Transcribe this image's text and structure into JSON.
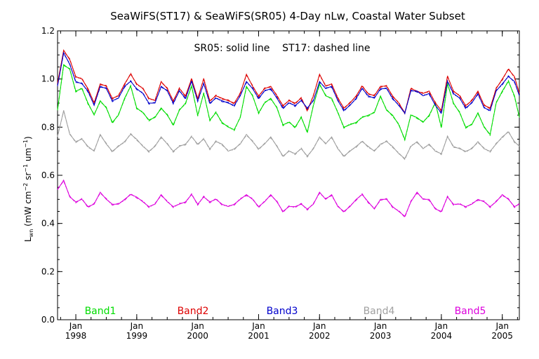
{
  "chart_data": {
    "type": "line",
    "title": "SeaWiFS(ST17) & SeaWiFS(SR05) 4-Day nLw, Coastal Water Subset",
    "annotation": "SR05: solid line    ST17: dashed line",
    "ylabel_main": "L",
    "ylabel_sub": "wn",
    "ylabel_units": "(mW cm",
    "ylabel_units_tail": "sr",
    "ylabel_units_end": "um",
    "ylabel_sup1": "−2",
    "ylabel_sup2": "−1",
    "ylabel_sup3": "−1",
    "xlabel": "",
    "ylim": [
      0.0,
      1.2
    ],
    "xlim": [
      1997.7,
      2005.28
    ],
    "yticks": [
      "0.0",
      "0.2",
      "0.4",
      "0.6",
      "0.8",
      "1.0",
      "1.2"
    ],
    "xticks": [
      {
        "month": "Jan",
        "year": "1998"
      },
      {
        "month": "Jan",
        "year": "1999"
      },
      {
        "month": "Jan",
        "year": "2000"
      },
      {
        "month": "Jan",
        "year": "2001"
      },
      {
        "month": "Jan",
        "year": "2002"
      },
      {
        "month": "Jan",
        "year": "2003"
      },
      {
        "month": "Jan",
        "year": "2004"
      },
      {
        "month": "Jan",
        "year": "2005"
      }
    ],
    "grid": false,
    "legend_position": "bottom",
    "series": [
      {
        "name": "Band1",
        "color": "#00dd00",
        "x": [
          1997.7,
          1997.8,
          1997.9,
          1998.0,
          1998.1,
          1998.2,
          1998.3,
          1998.4,
          1998.5,
          1998.6,
          1998.7,
          1998.8,
          1998.9,
          1999.0,
          1999.1,
          1999.2,
          1999.3,
          1999.4,
          1999.5,
          1999.6,
          1999.7,
          1999.8,
          1999.9,
          2000.0,
          2000.1,
          2000.2,
          2000.3,
          2000.4,
          2000.5,
          2000.6,
          2000.7,
          2000.8,
          2000.9,
          2001.0,
          2001.1,
          2001.2,
          2001.3,
          2001.4,
          2001.5,
          2001.6,
          2001.7,
          2001.8,
          2001.9,
          2002.0,
          2002.1,
          2002.2,
          2002.3,
          2002.4,
          2002.5,
          2002.6,
          2002.7,
          2002.8,
          2002.9,
          2003.0,
          2003.1,
          2003.2,
          2003.3,
          2003.4,
          2003.5,
          2003.6,
          2003.7,
          2003.8,
          2003.9,
          2004.0,
          2004.1,
          2004.2,
          2004.3,
          2004.4,
          2004.5,
          2004.6,
          2004.7,
          2004.8,
          2004.9,
          2005.0,
          2005.1,
          2005.2,
          2005.28
        ],
        "values": [
          0.87,
          1.06,
          1.04,
          0.95,
          0.96,
          0.9,
          0.85,
          0.91,
          0.88,
          0.82,
          0.85,
          0.92,
          0.97,
          0.88,
          0.86,
          0.83,
          0.84,
          0.88,
          0.85,
          0.81,
          0.87,
          0.9,
          0.97,
          0.85,
          0.94,
          0.83,
          0.86,
          0.82,
          0.8,
          0.79,
          0.84,
          0.97,
          0.93,
          0.86,
          0.9,
          0.92,
          0.88,
          0.81,
          0.82,
          0.8,
          0.84,
          0.78,
          0.89,
          0.98,
          0.93,
          0.92,
          0.86,
          0.8,
          0.81,
          0.82,
          0.84,
          0.85,
          0.86,
          0.93,
          0.87,
          0.85,
          0.81,
          0.75,
          0.85,
          0.84,
          0.82,
          0.85,
          0.9,
          0.8,
          0.98,
          0.9,
          0.86,
          0.8,
          0.81,
          0.86,
          0.8,
          0.77,
          0.9,
          0.95,
          0.99,
          0.93,
          0.84
        ]
      },
      {
        "name": "Band2",
        "color": "#dd0000",
        "x": [
          1997.7,
          1997.8,
          1997.9,
          1998.0,
          1998.1,
          1998.2,
          1998.3,
          1998.4,
          1998.5,
          1998.6,
          1998.7,
          1998.8,
          1998.9,
          1999.0,
          1999.1,
          1999.2,
          1999.3,
          1999.4,
          1999.5,
          1999.6,
          1999.7,
          1999.8,
          1999.9,
          2000.0,
          2000.1,
          2000.2,
          2000.3,
          2000.4,
          2000.5,
          2000.6,
          2000.7,
          2000.8,
          2000.9,
          2001.0,
          2001.1,
          2001.2,
          2001.3,
          2001.4,
          2001.5,
          2001.6,
          2001.7,
          2001.8,
          2001.9,
          2002.0,
          2002.1,
          2002.2,
          2002.3,
          2002.4,
          2002.5,
          2002.6,
          2002.7,
          2002.8,
          2002.9,
          2003.0,
          2003.1,
          2003.2,
          2003.3,
          2003.4,
          2003.5,
          2003.6,
          2003.7,
          2003.8,
          2003.9,
          2004.0,
          2004.1,
          2004.2,
          2004.3,
          2004.4,
          2004.5,
          2004.6,
          2004.7,
          2004.8,
          2004.9,
          2005.0,
          2005.1,
          2005.2,
          2005.28
        ],
        "values": [
          0.98,
          1.12,
          1.08,
          1.01,
          1.0,
          0.96,
          0.9,
          0.98,
          0.97,
          0.92,
          0.93,
          0.98,
          1.02,
          0.98,
          0.96,
          0.92,
          0.91,
          0.99,
          0.96,
          0.91,
          0.96,
          0.93,
          1.0,
          0.92,
          1.0,
          0.91,
          0.93,
          0.92,
          0.91,
          0.9,
          0.94,
          1.02,
          0.97,
          0.93,
          0.96,
          0.97,
          0.93,
          0.89,
          0.91,
          0.9,
          0.92,
          0.87,
          0.93,
          1.02,
          0.97,
          0.98,
          0.92,
          0.88,
          0.9,
          0.93,
          0.97,
          0.94,
          0.93,
          0.97,
          0.97,
          0.93,
          0.9,
          0.86,
          0.96,
          0.95,
          0.94,
          0.95,
          0.9,
          0.87,
          1.01,
          0.95,
          0.93,
          0.89,
          0.91,
          0.95,
          0.89,
          0.88,
          0.96,
          1.0,
          1.04,
          1.01,
          0.94
        ]
      },
      {
        "name": "Band3",
        "color": "#0000cc",
        "x": [
          1997.7,
          1997.8,
          1997.9,
          1998.0,
          1998.1,
          1998.2,
          1998.3,
          1998.4,
          1998.5,
          1998.6,
          1998.7,
          1998.8,
          1998.9,
          1999.0,
          1999.1,
          1999.2,
          1999.3,
          1999.4,
          1999.5,
          1999.6,
          1999.7,
          1999.8,
          1999.9,
          2000.0,
          2000.1,
          2000.2,
          2000.3,
          2000.4,
          2000.5,
          2000.6,
          2000.7,
          2000.8,
          2000.9,
          2001.0,
          2001.1,
          2001.2,
          2001.3,
          2001.4,
          2001.5,
          2001.6,
          2001.7,
          2001.8,
          2001.9,
          2002.0,
          2002.1,
          2002.2,
          2002.3,
          2002.4,
          2002.5,
          2002.6,
          2002.7,
          2002.8,
          2002.9,
          2003.0,
          2003.1,
          2003.2,
          2003.3,
          2003.4,
          2003.5,
          2003.6,
          2003.7,
          2003.8,
          2003.9,
          2004.0,
          2004.1,
          2004.2,
          2004.3,
          2004.4,
          2004.5,
          2004.6,
          2004.7,
          2004.8,
          2004.9,
          2005.0,
          2005.1,
          2005.2,
          2005.28
        ],
        "values": [
          0.97,
          1.11,
          1.06,
          0.99,
          0.98,
          0.95,
          0.89,
          0.97,
          0.96,
          0.91,
          0.92,
          0.97,
          0.99,
          0.96,
          0.94,
          0.9,
          0.9,
          0.97,
          0.95,
          0.9,
          0.95,
          0.92,
          0.99,
          0.91,
          0.98,
          0.9,
          0.92,
          0.91,
          0.9,
          0.89,
          0.93,
          0.99,
          0.96,
          0.92,
          0.95,
          0.96,
          0.92,
          0.88,
          0.9,
          0.89,
          0.91,
          0.88,
          0.91,
          0.99,
          0.96,
          0.97,
          0.91,
          0.87,
          0.89,
          0.92,
          0.96,
          0.93,
          0.92,
          0.96,
          0.96,
          0.92,
          0.89,
          0.86,
          0.95,
          0.95,
          0.93,
          0.94,
          0.89,
          0.86,
          0.99,
          0.94,
          0.92,
          0.88,
          0.9,
          0.94,
          0.88,
          0.87,
          0.95,
          0.98,
          1.01,
          0.99,
          0.93
        ]
      },
      {
        "name": "Band4",
        "color": "#a0a0a0",
        "x": [
          1997.7,
          1997.8,
          1997.9,
          1998.0,
          1998.1,
          1998.2,
          1998.3,
          1998.4,
          1998.5,
          1998.6,
          1998.7,
          1998.8,
          1998.9,
          1999.0,
          1999.1,
          1999.2,
          1999.3,
          1999.4,
          1999.5,
          1999.6,
          1999.7,
          1999.8,
          1999.9,
          2000.0,
          2000.1,
          2000.2,
          2000.3,
          2000.4,
          2000.5,
          2000.6,
          2000.7,
          2000.8,
          2000.9,
          2001.0,
          2001.1,
          2001.2,
          2001.3,
          2001.4,
          2001.5,
          2001.6,
          2001.7,
          2001.8,
          2001.9,
          2002.0,
          2002.1,
          2002.2,
          2002.3,
          2002.4,
          2002.5,
          2002.6,
          2002.7,
          2002.8,
          2002.9,
          2003.0,
          2003.1,
          2003.2,
          2003.3,
          2003.4,
          2003.5,
          2003.6,
          2003.7,
          2003.8,
          2003.9,
          2004.0,
          2004.1,
          2004.2,
          2004.3,
          2004.4,
          2004.5,
          2004.6,
          2004.7,
          2004.8,
          2004.9,
          2005.0,
          2005.1,
          2005.2,
          2005.28
        ],
        "values": [
          0.76,
          0.87,
          0.77,
          0.74,
          0.75,
          0.72,
          0.7,
          0.77,
          0.73,
          0.7,
          0.72,
          0.74,
          0.77,
          0.75,
          0.72,
          0.7,
          0.72,
          0.76,
          0.73,
          0.7,
          0.72,
          0.73,
          0.76,
          0.73,
          0.75,
          0.71,
          0.74,
          0.73,
          0.7,
          0.71,
          0.73,
          0.77,
          0.74,
          0.71,
          0.73,
          0.76,
          0.72,
          0.68,
          0.7,
          0.69,
          0.71,
          0.68,
          0.71,
          0.76,
          0.73,
          0.76,
          0.71,
          0.68,
          0.7,
          0.72,
          0.74,
          0.72,
          0.7,
          0.73,
          0.74,
          0.72,
          0.69,
          0.67,
          0.72,
          0.74,
          0.71,
          0.73,
          0.7,
          0.69,
          0.76,
          0.72,
          0.71,
          0.7,
          0.71,
          0.74,
          0.71,
          0.7,
          0.73,
          0.76,
          0.78,
          0.74,
          0.72
        ]
      },
      {
        "name": "Band5",
        "color": "#dd00dd",
        "x": [
          1997.7,
          1997.8,
          1997.9,
          1998.0,
          1998.1,
          1998.2,
          1998.3,
          1998.4,
          1998.5,
          1998.6,
          1998.7,
          1998.8,
          1998.9,
          1999.0,
          1999.1,
          1999.2,
          1999.3,
          1999.4,
          1999.5,
          1999.6,
          1999.7,
          1999.8,
          1999.9,
          2000.0,
          2000.1,
          2000.2,
          2000.3,
          2000.4,
          2000.5,
          2000.6,
          2000.7,
          2000.8,
          2000.9,
          2001.0,
          2001.1,
          2001.2,
          2001.3,
          2001.4,
          2001.5,
          2001.6,
          2001.7,
          2001.8,
          2001.9,
          2002.0,
          2002.1,
          2002.2,
          2002.3,
          2002.4,
          2002.5,
          2002.6,
          2002.7,
          2002.8,
          2002.9,
          2003.0,
          2003.1,
          2003.2,
          2003.3,
          2003.4,
          2003.5,
          2003.6,
          2003.7,
          2003.8,
          2003.9,
          2004.0,
          2004.1,
          2004.2,
          2004.3,
          2004.4,
          2004.5,
          2004.6,
          2004.7,
          2004.8,
          2004.9,
          2005.0,
          2005.1,
          2005.2,
          2005.28
        ],
        "values": [
          0.54,
          0.58,
          0.51,
          0.49,
          0.5,
          0.47,
          0.48,
          0.53,
          0.5,
          0.48,
          0.48,
          0.5,
          0.52,
          0.51,
          0.49,
          0.47,
          0.48,
          0.52,
          0.49,
          0.47,
          0.48,
          0.49,
          0.52,
          0.48,
          0.51,
          0.49,
          0.5,
          0.48,
          0.47,
          0.48,
          0.5,
          0.52,
          0.5,
          0.47,
          0.49,
          0.52,
          0.49,
          0.45,
          0.47,
          0.47,
          0.48,
          0.46,
          0.48,
          0.53,
          0.5,
          0.52,
          0.47,
          0.45,
          0.47,
          0.5,
          0.52,
          0.49,
          0.46,
          0.5,
          0.5,
          0.47,
          0.45,
          0.43,
          0.49,
          0.53,
          0.5,
          0.5,
          0.46,
          0.45,
          0.51,
          0.48,
          0.48,
          0.47,
          0.48,
          0.5,
          0.49,
          0.47,
          0.49,
          0.52,
          0.5,
          0.47,
          0.48
        ]
      }
    ]
  }
}
